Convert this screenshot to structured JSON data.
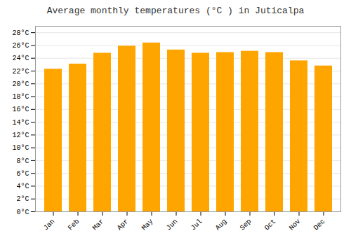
{
  "chart_data": {
    "type": "bar",
    "title": "Average monthly temperatures (°C ) in Juticalpa",
    "categories": [
      "Jan",
      "Feb",
      "Mar",
      "Apr",
      "May",
      "Jun",
      "Jul",
      "Aug",
      "Sep",
      "Oct",
      "Nov",
      "Dec"
    ],
    "values": [
      22.3,
      23.1,
      24.8,
      25.9,
      26.4,
      25.3,
      24.8,
      24.9,
      25.1,
      24.9,
      23.6,
      22.8
    ],
    "color": "#FFA500",
    "ylim": [
      0,
      29
    ],
    "yticks": [
      {
        "value": 0,
        "label": "0°C"
      },
      {
        "value": 2,
        "label": "2°C"
      },
      {
        "value": 4,
        "label": "4°C"
      },
      {
        "value": 6,
        "label": "6°C"
      },
      {
        "value": 8,
        "label": "8°C"
      },
      {
        "value": 10,
        "label": "10°C"
      },
      {
        "value": 12,
        "label": "12°C"
      },
      {
        "value": 14,
        "label": "14°C"
      },
      {
        "value": 16,
        "label": "16°C"
      },
      {
        "value": 18,
        "label": "18°C"
      },
      {
        "value": 20,
        "label": "20°C"
      },
      {
        "value": 22,
        "label": "22°C"
      },
      {
        "value": 24,
        "label": "24°C"
      },
      {
        "value": 26,
        "label": "26°C"
      },
      {
        "value": 28,
        "label": "28°C"
      }
    ],
    "grid": true
  }
}
